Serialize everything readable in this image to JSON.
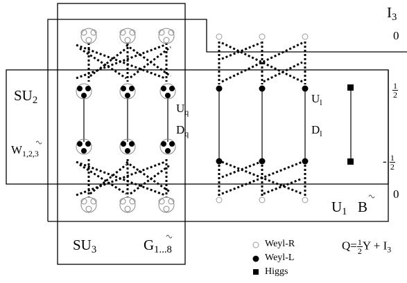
{
  "labels": {
    "su2": "SU",
    "su2_sub": "2",
    "w": "W",
    "w_sub": "1,2,3",
    "su3": "SU",
    "su3_sub": "3",
    "g": "G",
    "g_sub": "1...8",
    "u1": "U",
    "u1_sub": "1",
    "b": "B",
    "uq": "U",
    "uq_sub": "q",
    "dq": "D",
    "dq_sub": "q",
    "ul": "U",
    "ul_sub": "l",
    "dl": "D",
    "dl_sub": "l"
  },
  "isospin": {
    "header": "I",
    "header_sub": "3",
    "top": "0",
    "plus_half_num": "1",
    "plus_half_den": "2",
    "minus_sign": "-",
    "minus_half_num": "1",
    "minus_half_den": "2",
    "bottom": "0"
  },
  "legend": {
    "weyl_r": "Weyl-R",
    "weyl_l": "Weyl-L",
    "higgs": "Higgs"
  },
  "formula": {
    "prefix": "Q=",
    "half_num": "1",
    "half_den": "2",
    "rest": "Y + I",
    "rest_sub": "3"
  }
}
